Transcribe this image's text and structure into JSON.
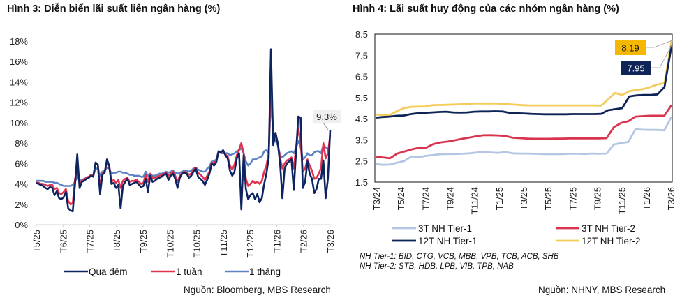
{
  "titles": {
    "left": "Hình 3: Diễn biến lãi suất liên ngân hàng (%)",
    "right": "Hình 4: Lãi suất huy động của các nhóm ngân hàng (%)"
  },
  "sources": {
    "left": "Nguồn: Bloomberg, MBS Research",
    "right": "Nguồn: NHNY, MBS Research"
  },
  "notes": [
    "NH Tier-1: BID, CTG, VCB, MBB, VPB, TCB, ACB, SHB",
    "NH Tier-2: STB, HDB, LPB, VIB, TPB, NAB"
  ],
  "chart_data": [
    {
      "type": "line",
      "title": "Hình 3: Diễn biến lãi suất liên ngân hàng (%)",
      "xlabel": "",
      "ylabel": "",
      "ylim": [
        0,
        18
      ],
      "y_ticks": [
        "0%",
        "2%",
        "4%",
        "6%",
        "8%",
        "10%",
        "12%",
        "14%",
        "16%",
        "18%"
      ],
      "x_ticks": [
        "T5/25",
        "T6/25",
        "T7/25",
        "T8/25",
        "T9/25",
        "T10/25",
        "T10/25",
        "T11/25",
        "T12/25",
        "T1/26",
        "T2/26",
        "T3/26"
      ],
      "grid": false,
      "legend_position": "bottom",
      "annotation": "9.3%",
      "series": [
        {
          "name": "Qua đêm",
          "color": "#0d2461",
          "values": [
            4.1,
            4.0,
            3.9,
            3.8,
            3.6,
            3.5,
            3.7,
            3.6,
            2.9,
            3.3,
            2.6,
            2.5,
            2.7,
            3.2,
            1.6,
            1.4,
            1.3,
            4.0,
            6.9,
            3.6,
            4.2,
            4.3,
            4.5,
            4.6,
            4.8,
            4.7,
            6.1,
            5.9,
            3.0,
            4.9,
            5.1,
            6.4,
            5.8,
            4.0,
            4.1,
            3.6,
            3.9,
            1.6,
            3.8,
            4.2,
            4.5,
            3.9,
            4.0,
            4.1,
            4.2,
            3.9,
            3.7,
            3.8,
            4.5,
            3.2,
            4.8,
            4.2,
            4.3,
            4.5,
            4.6,
            4.7,
            4.9,
            5.0,
            4.4,
            4.8,
            5.0,
            4.5,
            3.6,
            4.6,
            5.0,
            5.1,
            5.0,
            4.6,
            4.8,
            5.2,
            5.5,
            4.7,
            4.5,
            4.3,
            3.9,
            4.4,
            5.0,
            6.0,
            5.8,
            6.1,
            7.2,
            7.1,
            7.3,
            6.8,
            6.5,
            5.3,
            4.8,
            5.2,
            6.5,
            7.0,
            1.5,
            6.8,
            3.5,
            2.5,
            2.9,
            3.1,
            2.5,
            3.0,
            2.2,
            2.6,
            4.0,
            5.0,
            6.5,
            17.2,
            7.8,
            9.0,
            8.0,
            6.0,
            2.6,
            5.5,
            6.0,
            6.2,
            6.4,
            3.4,
            7.0,
            10.6,
            10.5,
            3.6,
            4.2,
            6.2,
            5.0,
            4.5,
            3.1,
            3.5,
            4.5,
            4.5,
            6.3,
            2.6,
            4.5,
            9.3
          ],
          "last_value": 9.3
        },
        {
          "name": "1 tuần",
          "color": "#e0334f",
          "values": [
            4.1,
            4.1,
            4.0,
            4.0,
            3.9,
            3.8,
            3.9,
            3.9,
            3.5,
            3.6,
            3.1,
            3.0,
            3.2,
            3.5,
            2.3,
            2.0,
            2.1,
            4.5,
            5.5,
            4.1,
            4.3,
            4.4,
            4.6,
            4.7,
            4.9,
            4.8,
            6.0,
            5.9,
            3.7,
            5.0,
            5.2,
            6.1,
            5.8,
            4.2,
            4.4,
            4.1,
            4.4,
            3.6,
            4.3,
            4.5,
            4.6,
            4.2,
            4.3,
            4.3,
            4.4,
            4.2,
            4.0,
            4.1,
            4.9,
            4.2,
            5.0,
            4.6,
            4.6,
            4.7,
            4.8,
            4.9,
            5.0,
            5.1,
            4.8,
            5.0,
            5.2,
            4.8,
            4.2,
            4.8,
            5.1,
            5.2,
            5.1,
            4.9,
            5.0,
            5.4,
            5.6,
            5.1,
            4.9,
            4.7,
            4.4,
            4.8,
            5.2,
            6.1,
            6.0,
            6.3,
            7.2,
            7.1,
            7.2,
            6.9,
            6.7,
            5.8,
            5.4,
            5.9,
            6.8,
            7.4,
            8.0,
            7.0,
            4.5,
            3.8,
            4.0,
            4.3,
            4.1,
            4.2,
            4.0,
            4.3,
            5.2,
            5.8,
            7.0,
            14.0,
            8.5,
            9.0,
            8.0,
            6.5,
            5.5,
            6.0,
            6.3,
            6.4,
            6.6,
            5.5,
            7.5,
            9.5,
            8.0,
            5.2,
            5.5,
            6.4,
            5.8,
            5.3,
            4.5,
            4.6,
            5.0,
            5.6,
            8.0,
            6.5,
            7.0,
            8.8
          ],
          "last_value": 8.8
        },
        {
          "name": "1 tháng",
          "color": "#5b82c2",
          "values": [
            4.3,
            4.3,
            4.3,
            4.3,
            4.2,
            4.2,
            4.2,
            4.2,
            4.1,
            4.1,
            4.0,
            3.9,
            3.8,
            3.8,
            3.8,
            3.8,
            3.9,
            4.2,
            4.7,
            4.3,
            4.4,
            4.5,
            4.6,
            4.7,
            4.8,
            4.8,
            5.5,
            5.5,
            4.8,
            5.2,
            5.3,
            5.6,
            5.5,
            5.0,
            5.1,
            5.1,
            5.2,
            5.2,
            5.1,
            5.1,
            5.0,
            4.9,
            4.9,
            4.8,
            4.8,
            4.8,
            4.7,
            4.7,
            5.2,
            4.8,
            5.0,
            4.8,
            4.8,
            4.9,
            5.0,
            5.0,
            5.1,
            5.2,
            5.1,
            5.2,
            5.3,
            5.1,
            5.0,
            5.1,
            5.2,
            5.3,
            5.3,
            5.2,
            5.3,
            5.5,
            5.6,
            5.4,
            5.3,
            5.2,
            5.2,
            5.5,
            5.7,
            6.2,
            6.2,
            6.4,
            7.2,
            7.0,
            7.0,
            7.0,
            7.0,
            6.8,
            6.9,
            7.0,
            7.2,
            7.3,
            7.5,
            7.0,
            6.2,
            5.8,
            6.0,
            6.4,
            6.4,
            6.5,
            6.6,
            6.7,
            7.2,
            7.3,
            7.0,
            12.4,
            8.8,
            8.2,
            7.8,
            6.8,
            6.6,
            6.8,
            7.0,
            7.1,
            7.2,
            7.0,
            7.5,
            8.2,
            7.6,
            6.4,
            6.6,
            7.0,
            6.8,
            6.8,
            7.1,
            7.2,
            7.2,
            7.0,
            7.8,
            7.6,
            7.4,
            7.5
          ],
          "last_value": 7.5
        }
      ]
    },
    {
      "type": "line",
      "title": "Hình 4: Lãi suất huy động của các nhóm ngân hàng (%)",
      "xlabel": "",
      "ylabel": "",
      "ylim": [
        1.5,
        8.5
      ],
      "y_ticks": [
        "1.5",
        "2.5",
        "3.5",
        "4.5",
        "5.5",
        "6.5",
        "7.5",
        "8.5"
      ],
      "x_ticks": [
        "T3/24",
        "T5/24",
        "T7/24",
        "T9/24",
        "T11/24",
        "T1/25",
        "T3/25",
        "T5/25",
        "T7/25",
        "T9/25",
        "T11/25",
        "T1/26",
        "T3/26"
      ],
      "grid": false,
      "legend_position": "bottom",
      "annotations": [
        {
          "series": "12T NH Tier-2",
          "label": "8.19",
          "value": 8.19
        },
        {
          "series": "12T NH Tier-1",
          "label": "7.95",
          "value": 7.95
        }
      ],
      "series": [
        {
          "name": "3T NH Tier-1",
          "color": "#b4c6e4",
          "values": [
            2.35,
            2.32,
            2.33,
            2.42,
            2.5,
            2.72,
            2.68,
            2.74,
            2.78,
            2.82,
            2.83,
            2.83,
            2.84,
            2.86,
            2.9,
            2.93,
            2.9,
            2.88,
            2.92,
            2.86,
            2.85,
            2.85,
            2.84,
            2.83,
            2.82,
            2.82,
            2.83,
            2.84,
            2.84,
            2.83,
            2.85,
            2.84,
            2.85,
            3.28,
            3.35,
            3.4,
            4.0,
            3.98,
            3.97,
            3.97,
            3.95,
            4.6
          ],
          "last_value": 4.6
        },
        {
          "name": "3T NH Tier-2",
          "color": "#d9344f",
          "values": [
            2.7,
            2.67,
            2.63,
            2.85,
            2.95,
            3.05,
            3.12,
            3.13,
            3.3,
            3.38,
            3.42,
            3.48,
            3.55,
            3.61,
            3.67,
            3.72,
            3.72,
            3.71,
            3.68,
            3.6,
            3.58,
            3.56,
            3.55,
            3.55,
            3.55,
            3.56,
            3.56,
            3.57,
            3.57,
            3.57,
            3.57,
            3.57,
            3.58,
            4.1,
            4.3,
            4.38,
            4.6,
            4.62,
            4.64,
            4.64,
            4.64,
            5.15
          ],
          "last_value": 5.15
        },
        {
          "name": "12T NH Tier-1",
          "color": "#0e2456",
          "values": [
            4.55,
            4.58,
            4.6,
            4.64,
            4.65,
            4.72,
            4.76,
            4.78,
            4.8,
            4.82,
            4.83,
            4.8,
            4.79,
            4.8,
            4.83,
            4.84,
            4.84,
            4.85,
            4.84,
            4.78,
            4.76,
            4.75,
            4.73,
            4.72,
            4.71,
            4.71,
            4.71,
            4.71,
            4.72,
            4.72,
            4.72,
            4.72,
            4.73,
            4.9,
            4.95,
            5.0,
            5.55,
            5.6,
            5.62,
            5.62,
            5.65,
            6.0,
            7.95
          ],
          "last_value": 7.95
        },
        {
          "name": "12T NH Tier-2",
          "color": "#f5cc5a",
          "values": [
            4.7,
            4.68,
            4.67,
            4.85,
            5.0,
            5.06,
            5.07,
            5.08,
            5.14,
            5.15,
            5.16,
            5.17,
            5.18,
            5.2,
            5.22,
            5.22,
            5.22,
            5.22,
            5.21,
            5.18,
            5.16,
            5.14,
            5.13,
            5.13,
            5.13,
            5.13,
            5.13,
            5.13,
            5.13,
            5.13,
            5.13,
            5.13,
            5.12,
            5.42,
            5.72,
            5.62,
            5.8,
            5.86,
            5.9,
            6.0,
            6.12,
            6.18,
            8.19
          ],
          "last_value": 8.19
        }
      ]
    }
  ]
}
